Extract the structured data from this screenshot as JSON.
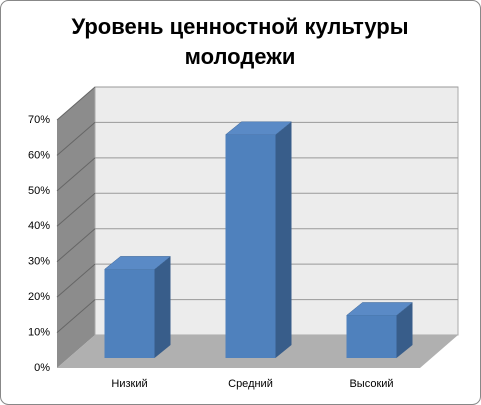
{
  "chart_data": {
    "type": "bar3d",
    "title": "Уровень ценностной культуры молодежи",
    "categories": [
      "Низкий",
      "Средний",
      "Высокий"
    ],
    "values": [
      25,
      63,
      12
    ],
    "color": "#4f81bd",
    "ylim": [
      0,
      70
    ],
    "yticks": [
      {
        "value": 0,
        "label": "0%"
      },
      {
        "value": 10,
        "label": "10%"
      },
      {
        "value": 20,
        "label": "20%"
      },
      {
        "value": 30,
        "label": "30%"
      },
      {
        "value": 40,
        "label": "40%"
      },
      {
        "value": 50,
        "label": "50%"
      },
      {
        "value": 60,
        "label": "60%"
      },
      {
        "value": 70,
        "label": "70%"
      }
    ],
    "grid": true
  }
}
